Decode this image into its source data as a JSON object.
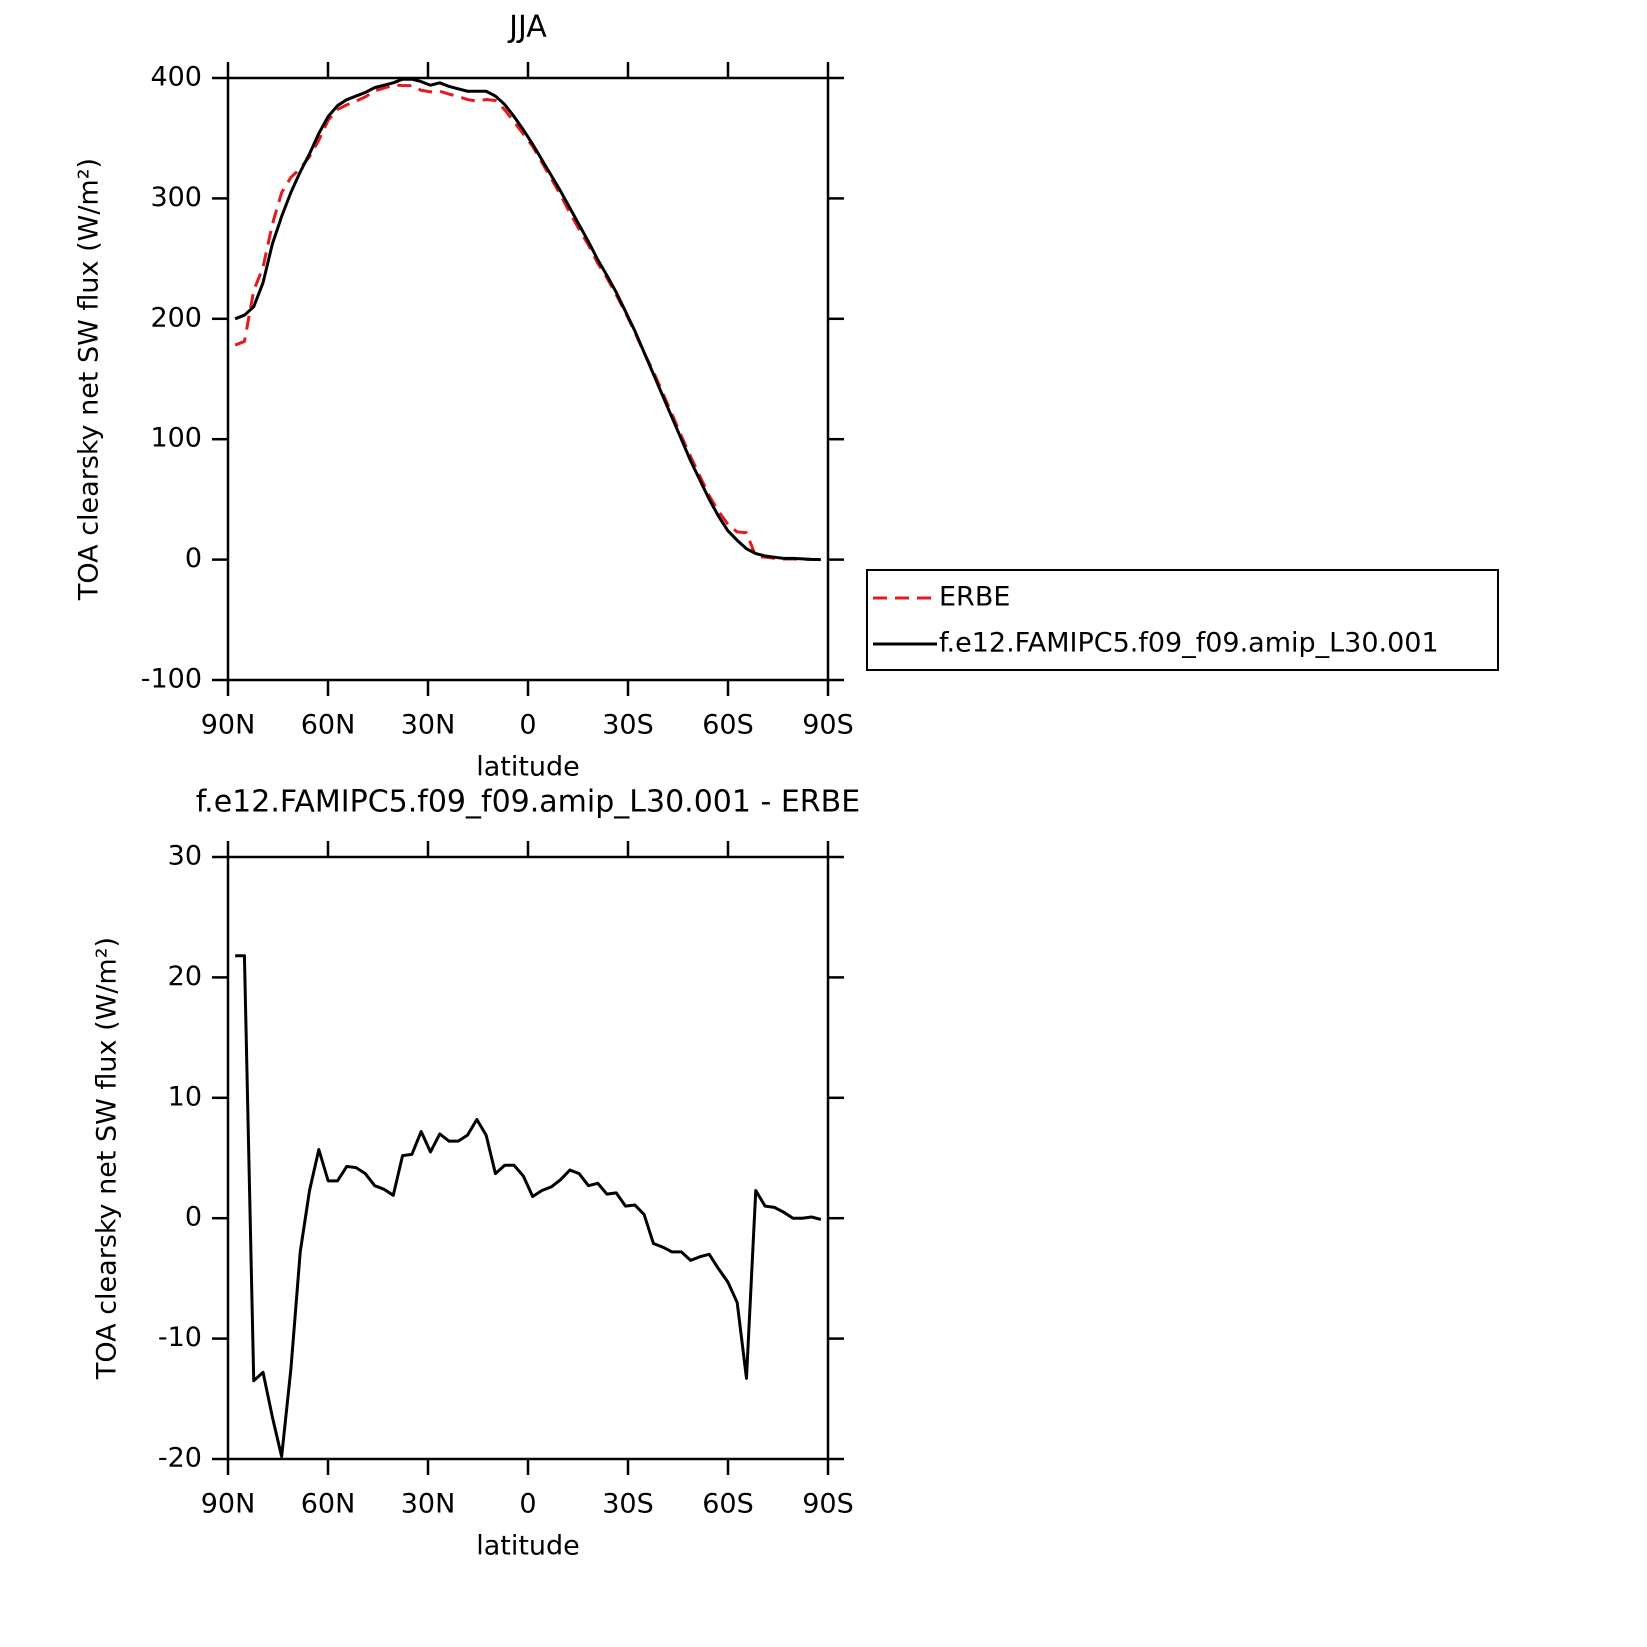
{
  "chart_data": [
    {
      "type": "line",
      "title": "JJA",
      "xlabel": "latitude",
      "ylabel": "TOA clearsky net SW flux (W/m²)",
      "xlim": [
        90,
        -90
      ],
      "xticks": [
        {
          "value": 90,
          "label": "90N"
        },
        {
          "value": 60,
          "label": "60N"
        },
        {
          "value": 30,
          "label": "30N"
        },
        0,
        {
          "value": -30,
          "label": "30S"
        },
        {
          "value": -60,
          "label": "60S"
        },
        {
          "value": -90,
          "label": "90S"
        }
      ],
      "ylim": [
        -100,
        400
      ],
      "yticks": [
        -100,
        0,
        100,
        200,
        300,
        400
      ],
      "x": [
        87.86,
        85.07,
        82.28,
        79.49,
        76.7,
        73.91,
        71.12,
        68.33,
        65.54,
        62.75,
        59.95,
        57.16,
        54.37,
        51.58,
        48.79,
        46.0,
        43.21,
        40.42,
        37.63,
        34.84,
        32.05,
        29.26,
        26.47,
        23.68,
        20.93,
        18.14,
        15.35,
        12.56,
        9.77,
        6.98,
        4.19,
        1.4,
        -1.4,
        -4.19,
        -6.98,
        -9.77,
        -12.56,
        -15.35,
        -18.14,
        -20.93,
        -23.68,
        -26.47,
        -29.26,
        -32.05,
        -34.84,
        -37.63,
        -40.42,
        -43.21,
        -46.0,
        -48.79,
        -51.58,
        -54.37,
        -57.16,
        -59.95,
        -62.75,
        -65.54,
        -68.33,
        -71.12,
        -73.91,
        -76.7,
        -79.49,
        -82.28,
        -85.07,
        -87.86
      ],
      "series": [
        {
          "name": "ERBE",
          "color": "#e41a1c",
          "dash": true,
          "values": [
            178.2,
            181.2,
            223.5,
            242.8,
            278.5,
            304.8,
            317.5,
            324.8,
            334.7,
            348.3,
            364.9,
            373.9,
            377.7,
            380.8,
            384.3,
            389.3,
            391.6,
            394.1,
            393.8,
            393.7,
            389.8,
            388.5,
            389,
            386.6,
            384.6,
            382.1,
            380.8,
            382.1,
            381.3,
            373.6,
            363.6,
            353.5,
            343.2,
            329.7,
            316.4,
            302.8,
            288,
            274.3,
            261.3,
            246.1,
            234,
            219.9,
            205,
            188.9,
            171.7,
            156.1,
            138.4,
            120.8,
            102.8,
            85.5,
            69.2,
            53,
            40.2,
            29.3,
            23,
            22.3,
            2.7,
            2,
            1.1,
            0.5,
            0.5,
            0.3,
            0.1,
            0.1
          ]
        },
        {
          "name": "f.e12.FAMIPC5.f09_f09.amip_L30.001",
          "color": "#000000",
          "dash": false,
          "values": [
            200,
            203,
            210,
            230,
            262,
            285,
            305,
            322,
            337,
            354,
            368,
            377,
            382,
            385,
            388,
            392,
            394,
            396,
            399,
            399,
            397,
            394,
            396,
            393,
            391,
            389,
            389,
            389,
            385,
            378,
            368,
            357,
            345,
            332,
            319,
            306,
            292,
            278,
            264,
            249,
            236,
            222,
            206,
            190,
            172,
            154,
            136,
            118,
            100,
            82,
            66,
            50,
            36,
            24,
            16,
            9,
            5,
            3,
            2,
            1,
            1,
            0.6,
            0.2,
            0
          ]
        }
      ]
    },
    {
      "type": "line",
      "title": "f.e12.FAMIPC5.f09_f09.amip_L30.001 - ERBE",
      "xlabel": "latitude",
      "ylabel": "TOA clearsky net SW flux (W/m²)",
      "xlim": [
        90,
        -90
      ],
      "xticks": [
        {
          "value": 90,
          "label": "90N"
        },
        {
          "value": 60,
          "label": "60N"
        },
        {
          "value": 30,
          "label": "30N"
        },
        0,
        {
          "value": -30,
          "label": "30S"
        },
        {
          "value": -60,
          "label": "60S"
        },
        {
          "value": -90,
          "label": "90S"
        }
      ],
      "ylim": [
        -20,
        30
      ],
      "yticks": [
        -20,
        -10,
        0,
        10,
        20,
        30
      ],
      "x": [
        87.86,
        85.07,
        82.28,
        79.49,
        76.7,
        73.91,
        71.12,
        68.33,
        65.54,
        62.75,
        59.95,
        57.16,
        54.37,
        51.58,
        48.79,
        46.0,
        43.21,
        40.42,
        37.63,
        34.84,
        32.05,
        29.26,
        26.47,
        23.68,
        20.93,
        18.14,
        15.35,
        12.56,
        9.77,
        6.98,
        4.19,
        1.4,
        -1.4,
        -4.19,
        -6.98,
        -9.77,
        -12.56,
        -15.35,
        -18.14,
        -20.93,
        -23.68,
        -26.47,
        -29.26,
        -32.05,
        -34.84,
        -37.63,
        -40.42,
        -43.21,
        -46.0,
        -48.79,
        -51.58,
        -54.37,
        -57.16,
        -59.95,
        -62.75,
        -65.54,
        -68.33,
        -71.12,
        -73.91,
        -76.7,
        -79.49,
        -82.28,
        -85.07,
        -87.86
      ],
      "series": [
        {
          "color": "#000000",
          "dash": false,
          "values": [
            21.8,
            21.8,
            -13.5,
            -12.8,
            -16.5,
            -19.8,
            -12.5,
            -2.8,
            2.3,
            5.7,
            3.1,
            3.1,
            4.3,
            4.2,
            3.7,
            2.7,
            2.4,
            1.9,
            5.2,
            5.3,
            7.2,
            5.5,
            7.0,
            6.4,
            6.4,
            6.9,
            8.2,
            6.9,
            3.7,
            4.4,
            4.4,
            3.5,
            1.8,
            2.3,
            2.6,
            3.2,
            4.0,
            3.7,
            2.7,
            2.9,
            2.0,
            2.1,
            1.0,
            1.1,
            0.3,
            -2.1,
            -2.4,
            -2.8,
            -2.8,
            -3.5,
            -3.2,
            -3.0,
            -4.2,
            -5.3,
            -7.0,
            -13.3,
            2.3,
            1.0,
            0.9,
            0.5,
            0.0,
            0.0,
            0.1,
            -0.1
          ]
        }
      ]
    }
  ]
}
